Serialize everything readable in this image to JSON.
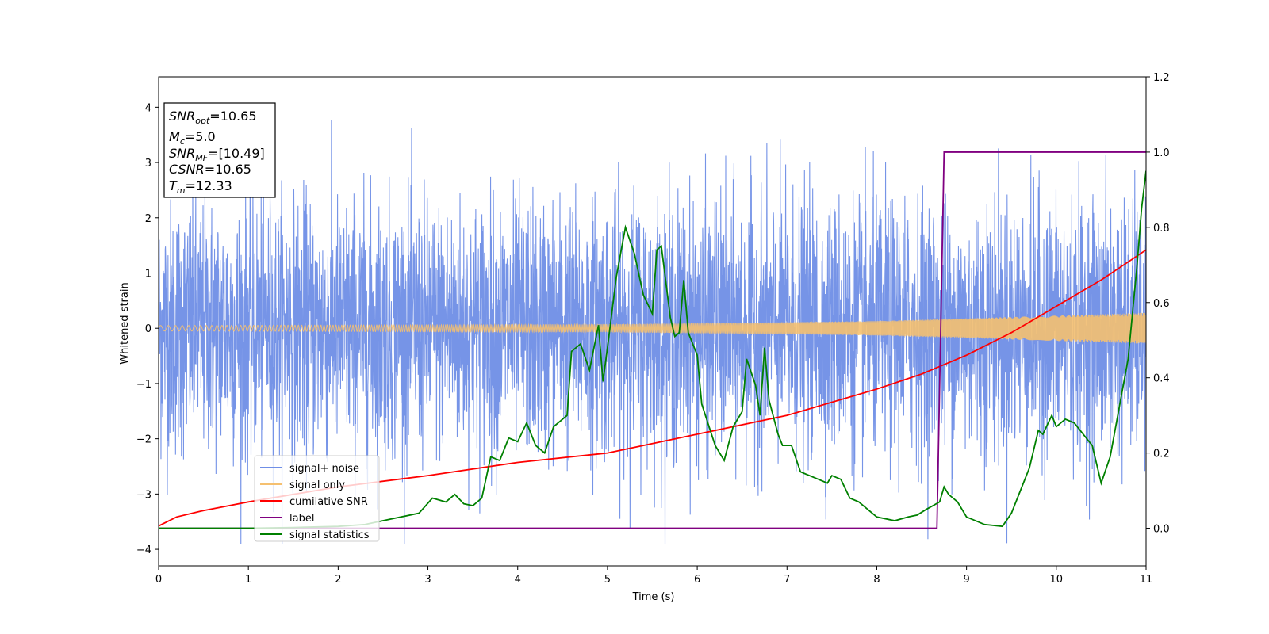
{
  "chart_data": {
    "type": "line",
    "xlabel": "Time (s)",
    "ylabel": "Whitened strain",
    "xlim": [
      0,
      11
    ],
    "ylim": [
      -4.3,
      4.55
    ],
    "y2lim": [
      -0.1,
      1.2
    ],
    "x_ticks": [
      "0",
      "1",
      "2",
      "3",
      "4",
      "5",
      "6",
      "7",
      "8",
      "9",
      "10",
      "11"
    ],
    "y_ticks": [
      "−4",
      "−3",
      "−2",
      "−1",
      "0",
      "1",
      "2",
      "3",
      "4"
    ],
    "y2_ticks": [
      "0.0",
      "0.2",
      "0.4",
      "0.6",
      "0.8",
      "1.0",
      "1.2"
    ],
    "grid": false,
    "legend_position": "lower-left",
    "annotation": {
      "snr_opt": {
        "base": "SNR",
        "sub": "opt",
        "value": "=10.65"
      },
      "mc": {
        "base": "M",
        "sub": "c",
        "value": "=5.0"
      },
      "snr_mf": {
        "base": "SNR",
        "sub": "MF",
        "value": "=[10.49]"
      },
      "csnr": {
        "base": "CSNR",
        "value": "=10.65"
      },
      "tm": {
        "base": "T",
        "sub": "m",
        "value": "=12.33"
      }
    },
    "series": [
      {
        "name": "signal+ noise",
        "color": "#6f8ee6",
        "axis": "left",
        "style": "noise",
        "amplitude_range": [
          -3.9,
          4.2
        ]
      },
      {
        "name": "signal only",
        "color": "#f5c070",
        "axis": "left",
        "style": "chirp",
        "envelope": [
          [
            0,
            0.05
          ],
          [
            5,
            0.07
          ],
          [
            8,
            0.13
          ],
          [
            11,
            0.28
          ]
        ]
      },
      {
        "name": "cumilative SNR",
        "color": "#ff0000",
        "axis": "right",
        "points": [
          [
            0,
            0.006
          ],
          [
            0.2,
            0.03
          ],
          [
            0.5,
            0.047
          ],
          [
            1,
            0.07
          ],
          [
            1.5,
            0.09
          ],
          [
            2,
            0.11
          ],
          [
            3,
            0.14
          ],
          [
            4,
            0.175
          ],
          [
            5,
            0.2
          ],
          [
            6,
            0.25
          ],
          [
            7,
            0.3
          ],
          [
            8,
            0.37
          ],
          [
            8.5,
            0.41
          ],
          [
            9,
            0.46
          ],
          [
            9.5,
            0.52
          ],
          [
            10,
            0.59
          ],
          [
            10.5,
            0.66
          ],
          [
            11,
            0.74
          ]
        ]
      },
      {
        "name": "label",
        "color": "#800080",
        "axis": "right",
        "points": [
          [
            0,
            0
          ],
          [
            8.67,
            0
          ],
          [
            8.75,
            1.0
          ],
          [
            11,
            1.0
          ]
        ]
      },
      {
        "name": "signal statistics",
        "color": "#008000",
        "axis": "right",
        "points": [
          [
            0,
            0.0
          ],
          [
            0.5,
            0.0
          ],
          [
            1,
            0.0
          ],
          [
            1.5,
            0.002
          ],
          [
            2,
            0.005
          ],
          [
            2.3,
            0.01
          ],
          [
            2.5,
            0.02
          ],
          [
            2.7,
            0.03
          ],
          [
            2.9,
            0.04
          ],
          [
            3.05,
            0.08
          ],
          [
            3.2,
            0.07
          ],
          [
            3.3,
            0.09
          ],
          [
            3.4,
            0.065
          ],
          [
            3.5,
            0.06
          ],
          [
            3.6,
            0.08
          ],
          [
            3.7,
            0.19
          ],
          [
            3.8,
            0.18
          ],
          [
            3.9,
            0.24
          ],
          [
            4.0,
            0.23
          ],
          [
            4.1,
            0.28
          ],
          [
            4.2,
            0.22
          ],
          [
            4.3,
            0.2
          ],
          [
            4.4,
            0.27
          ],
          [
            4.5,
            0.29
          ],
          [
            4.55,
            0.3
          ],
          [
            4.6,
            0.47
          ],
          [
            4.7,
            0.49
          ],
          [
            4.8,
            0.42
          ],
          [
            4.9,
            0.54
          ],
          [
            4.95,
            0.39
          ],
          [
            5.0,
            0.48
          ],
          [
            5.1,
            0.67
          ],
          [
            5.2,
            0.8
          ],
          [
            5.3,
            0.73
          ],
          [
            5.4,
            0.62
          ],
          [
            5.5,
            0.57
          ],
          [
            5.55,
            0.74
          ],
          [
            5.6,
            0.75
          ],
          [
            5.7,
            0.56
          ],
          [
            5.75,
            0.51
          ],
          [
            5.8,
            0.52
          ],
          [
            5.85,
            0.66
          ],
          [
            5.9,
            0.52
          ],
          [
            6.0,
            0.46
          ],
          [
            6.05,
            0.33
          ],
          [
            6.2,
            0.22
          ],
          [
            6.3,
            0.18
          ],
          [
            6.4,
            0.27
          ],
          [
            6.5,
            0.31
          ],
          [
            6.55,
            0.45
          ],
          [
            6.65,
            0.38
          ],
          [
            6.7,
            0.3
          ],
          [
            6.75,
            0.48
          ],
          [
            6.8,
            0.34
          ],
          [
            6.9,
            0.25
          ],
          [
            6.95,
            0.22
          ],
          [
            7.05,
            0.22
          ],
          [
            7.15,
            0.15
          ],
          [
            7.25,
            0.14
          ],
          [
            7.35,
            0.13
          ],
          [
            7.45,
            0.12
          ],
          [
            7.5,
            0.14
          ],
          [
            7.6,
            0.13
          ],
          [
            7.7,
            0.08
          ],
          [
            7.8,
            0.07
          ],
          [
            7.9,
            0.05
          ],
          [
            8.0,
            0.03
          ],
          [
            8.2,
            0.02
          ],
          [
            8.35,
            0.03
          ],
          [
            8.45,
            0.035
          ],
          [
            8.55,
            0.05
          ],
          [
            8.7,
            0.07
          ],
          [
            8.75,
            0.11
          ],
          [
            8.8,
            0.09
          ],
          [
            8.9,
            0.07
          ],
          [
            9.0,
            0.03
          ],
          [
            9.2,
            0.01
          ],
          [
            9.4,
            0.005
          ],
          [
            9.5,
            0.04
          ],
          [
            9.7,
            0.16
          ],
          [
            9.8,
            0.26
          ],
          [
            9.85,
            0.25
          ],
          [
            9.95,
            0.3
          ],
          [
            10.0,
            0.27
          ],
          [
            10.1,
            0.29
          ],
          [
            10.2,
            0.28
          ],
          [
            10.3,
            0.25
          ],
          [
            10.4,
            0.22
          ],
          [
            10.5,
            0.12
          ],
          [
            10.6,
            0.19
          ],
          [
            10.7,
            0.32
          ],
          [
            10.8,
            0.45
          ],
          [
            10.9,
            0.7
          ],
          [
            10.95,
            0.85
          ],
          [
            11,
            0.95
          ]
        ]
      }
    ]
  }
}
